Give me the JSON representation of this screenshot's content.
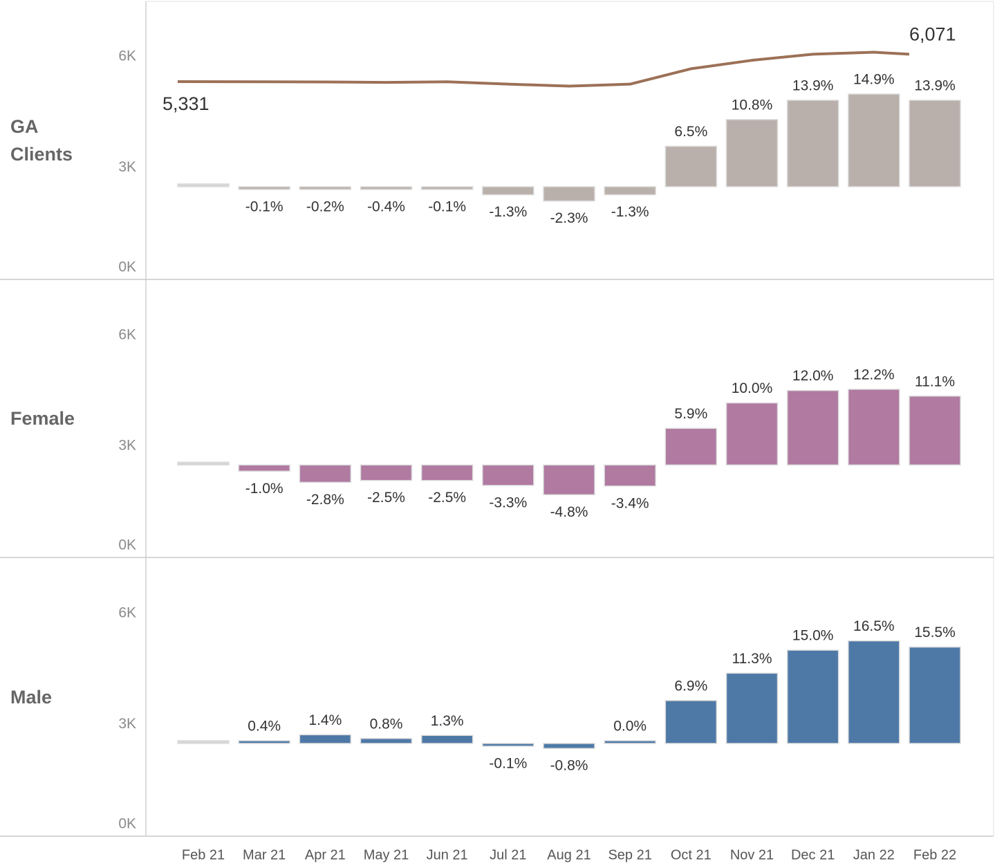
{
  "chart_data": {
    "type": "bar",
    "categories": [
      "Feb 21",
      "Mar 21",
      "Apr 21",
      "May 21",
      "Jun 21",
      "Jul 21",
      "Aug 21",
      "Sep 21",
      "Oct 21",
      "Nov 21",
      "Dec 21",
      "Jan 22",
      "Feb 22"
    ],
    "ylim": [
      0,
      7500
    ],
    "yticks": [
      {
        "value": 0,
        "label": "0K"
      },
      {
        "value": 3000,
        "label": "3K"
      },
      {
        "value": 6000,
        "label": "6K"
      }
    ],
    "y2lim": [
      -14.8,
      29.8
    ],
    "first_bar_color": "#d6d6d6",
    "panels": [
      {
        "label": "GA Clients",
        "bars": {
          "color": "#bab0ab",
          "axis": "y2",
          "values": [
            0,
            -0.1,
            -0.2,
            -0.4,
            -0.1,
            -1.3,
            -2.3,
            -1.3,
            6.5,
            10.8,
            13.9,
            14.9,
            13.9
          ],
          "value_labels": [
            null,
            "-0.1%",
            "-0.2%",
            "-0.4%",
            "-0.1%",
            "-1.3%",
            "-2.3%",
            "-1.3%",
            "6.5%",
            "10.8%",
            "13.9%",
            "14.9%",
            "13.9%"
          ]
        },
        "line": {
          "type": "line",
          "color": "#9c7157",
          "values": [
            5331,
            5326,
            5320,
            5310,
            5326,
            5262,
            5208,
            5262,
            5678,
            5907,
            6072,
            6125,
            6071
          ],
          "value_labels": [
            "5,331",
            null,
            null,
            null,
            null,
            null,
            null,
            null,
            null,
            null,
            null,
            null,
            "6,071"
          ]
        }
      },
      {
        "label": "Female",
        "bars": {
          "color": "#b07aa1",
          "axis": "y2",
          "values": [
            0,
            -1.0,
            -2.8,
            -2.5,
            -2.5,
            -3.3,
            -4.8,
            -3.4,
            5.9,
            10.0,
            12.0,
            12.2,
            11.1
          ],
          "value_labels": [
            null,
            "-1.0%",
            "-2.8%",
            "-2.5%",
            "-2.5%",
            "-3.3%",
            "-4.8%",
            "-3.4%",
            "5.9%",
            "10.0%",
            "12.0%",
            "12.2%",
            "11.1%"
          ]
        }
      },
      {
        "label": "Male",
        "bars": {
          "color": "#4e79a7",
          "axis": "y2",
          "values": [
            0,
            0.4,
            1.4,
            0.8,
            1.3,
            -0.1,
            -0.8,
            0.0,
            6.9,
            11.3,
            15.0,
            16.5,
            15.5
          ],
          "value_labels": [
            null,
            "0.4%",
            "1.4%",
            "0.8%",
            "1.3%",
            "-0.1%",
            "-0.8%",
            "0.0%",
            "6.9%",
            "11.3%",
            "15.0%",
            "16.5%",
            "15.5%"
          ]
        }
      }
    ]
  }
}
